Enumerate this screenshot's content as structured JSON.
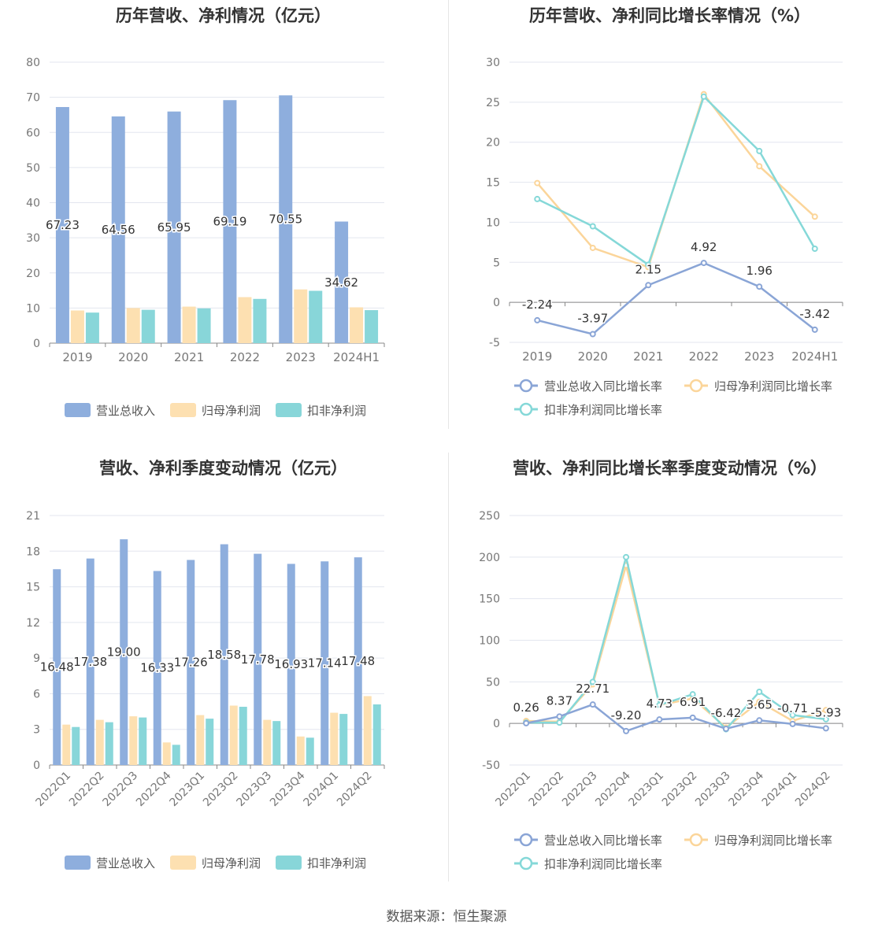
{
  "colors": {
    "revenue": "#8eaedd",
    "net_profit": "#fde0b1",
    "deducted_profit": "#88d6d9",
    "revenue_line": "#8aa5d6",
    "net_line": "#fbd59a",
    "deducted_line": "#85d8d8",
    "grid": "#e3e6ef",
    "axis_label": "#777777"
  },
  "source": "数据来源：恒生聚源",
  "chart_data": [
    {
      "id": "annual_values",
      "type": "bar",
      "title": "历年营收、净利情况（亿元）",
      "categories": [
        "2019",
        "2020",
        "2021",
        "2022",
        "2023",
        "2024H1"
      ],
      "ylim": [
        0,
        80
      ],
      "yticks": [
        0,
        10,
        20,
        30,
        40,
        50,
        60,
        70,
        80
      ],
      "grid": true,
      "legend_position": "bottom",
      "series": [
        {
          "name": "营业总收入",
          "values": [
            67.23,
            64.56,
            65.95,
            69.19,
            70.55,
            34.62
          ],
          "labels": [
            "67.23",
            "64.56",
            "65.95",
            "69.19",
            "70.55",
            "34.62"
          ]
        },
        {
          "name": "归母净利润",
          "values": [
            9.3,
            10.0,
            10.4,
            13.1,
            15.3,
            10.2
          ]
        },
        {
          "name": "扣非净利润",
          "values": [
            8.7,
            9.5,
            9.9,
            12.6,
            14.9,
            9.4
          ]
        }
      ]
    },
    {
      "id": "annual_growth",
      "type": "line",
      "title": "历年营收、净利同比增长率情况（%）",
      "categories": [
        "2019",
        "2020",
        "2021",
        "2022",
        "2023",
        "2024H1"
      ],
      "ylim": [
        -5,
        30
      ],
      "yticks": [
        -5,
        0,
        5,
        10,
        15,
        20,
        25,
        30
      ],
      "grid": true,
      "legend_position": "bottom",
      "series": [
        {
          "name": "营业总收入同比增长率",
          "values": [
            -2.24,
            -3.97,
            2.15,
            4.92,
            1.96,
            -3.42
          ],
          "labels": [
            "-2.24",
            "-3.97",
            "2.15",
            "4.92",
            "1.96",
            "-3.42"
          ]
        },
        {
          "name": "归母净利润同比增长率",
          "values": [
            14.9,
            6.8,
            4.4,
            26.0,
            17.0,
            10.7
          ]
        },
        {
          "name": "扣非净利润同比增长率",
          "values": [
            12.9,
            9.5,
            4.7,
            25.7,
            18.9,
            6.7
          ]
        }
      ]
    },
    {
      "id": "quarterly_values",
      "type": "bar",
      "title": "营收、净利季度变动情况（亿元）",
      "categories": [
        "2022Q1",
        "2022Q2",
        "2022Q3",
        "2022Q4",
        "2023Q1",
        "2023Q2",
        "2023Q3",
        "2023Q4",
        "2024Q1",
        "2024Q2"
      ],
      "ylim": [
        0,
        21
      ],
      "yticks": [
        0,
        3,
        6,
        9,
        12,
        15,
        18,
        21
      ],
      "grid": true,
      "legend_position": "bottom",
      "series": [
        {
          "name": "营业总收入",
          "values": [
            16.48,
            17.38,
            19.0,
            16.33,
            17.26,
            18.58,
            17.78,
            16.93,
            17.14,
            17.48
          ],
          "labels": [
            "16.48",
            "17.38",
            "19.00",
            "16.33",
            "17.26",
            "18.58",
            "17.78",
            "16.93",
            "17.14",
            "17.48"
          ]
        },
        {
          "name": "归母净利润",
          "values": [
            3.4,
            3.8,
            4.1,
            1.9,
            4.2,
            5.0,
            3.8,
            2.4,
            4.4,
            5.8
          ]
        },
        {
          "name": "扣非净利润",
          "values": [
            3.2,
            3.6,
            4.0,
            1.7,
            3.9,
            4.9,
            3.7,
            2.3,
            4.3,
            5.1
          ]
        }
      ]
    },
    {
      "id": "quarterly_growth",
      "type": "line",
      "title": "营收、净利同比增长率季度变动情况（%）",
      "categories": [
        "2022Q1",
        "2022Q2",
        "2022Q3",
        "2022Q4",
        "2023Q1",
        "2023Q2",
        "2023Q3",
        "2023Q4",
        "2024Q1",
        "2024Q2"
      ],
      "ylim": [
        -50,
        250
      ],
      "yticks": [
        -50,
        0,
        50,
        100,
        150,
        200,
        250
      ],
      "grid": true,
      "legend_position": "bottom",
      "series": [
        {
          "name": "营业总收入同比增长率",
          "values": [
            0.26,
            8.37,
            22.71,
            -9.2,
            4.73,
            6.91,
            -6.42,
            3.65,
            -0.71,
            -5.93
          ],
          "labels": [
            "0.26",
            "8.37",
            "22.71",
            "-9.20",
            "4.73",
            "6.91",
            "-6.42",
            "3.65",
            "-0.71",
            "-5.93"
          ]
        },
        {
          "name": "归母净利润同比增长率",
          "values": [
            3,
            2,
            47,
            190,
            22,
            30,
            -5,
            26,
            3,
            16
          ]
        },
        {
          "name": "扣非净利润同比增长率",
          "values": [
            1,
            1,
            50,
            200,
            22,
            35,
            -7,
            38,
            10,
            5
          ]
        }
      ]
    }
  ]
}
